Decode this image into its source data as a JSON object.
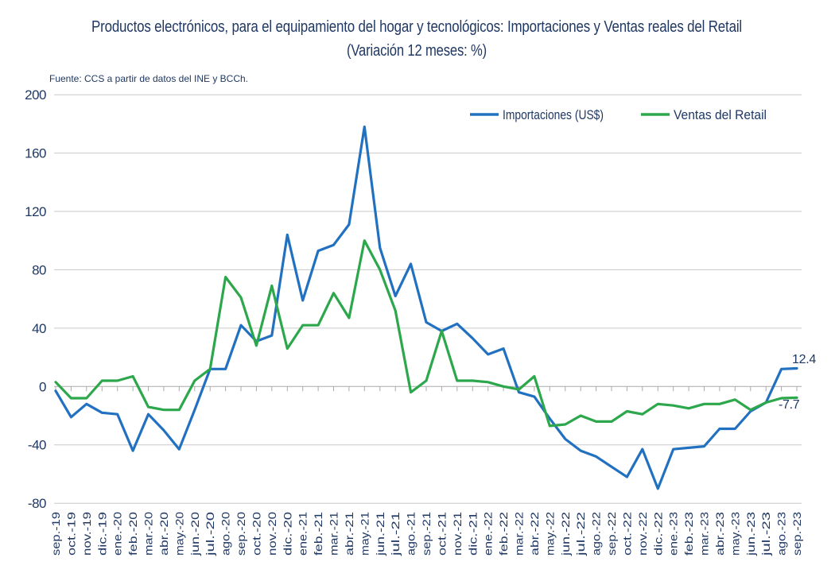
{
  "title": "Productos electrónicos, para el equipamiento del hogar y tecnológicos: Importaciones  y  Ventas reales del Retail",
  "subtitle": "(Variación 12 meses: %)",
  "source_note": "Fuente: CCS a partir de datos del INE y BCCh.",
  "colors": {
    "importaciones": "#2171C0",
    "ventas": "#2CA74B",
    "text_navy": "#1F3864",
    "gridline": "#C9C9C9",
    "axis_line": "#ABABAB"
  },
  "end_labels": {
    "importaciones": "12.4",
    "ventas": "-7.7"
  },
  "chart_data": {
    "type": "line",
    "title": "Productos electrónicos, para el equipamiento del hogar y tecnológicos: Importaciones y Ventas reales del Retail",
    "subtitle": "(Variación 12 meses: %)",
    "ylabel": "",
    "xlabel": "",
    "ylim": [
      -80,
      200
    ],
    "yticks": [
      200,
      160,
      120,
      80,
      40,
      0,
      -40,
      -80
    ],
    "grid": "horizontal",
    "legend_position": "top-right-inside",
    "categories": [
      "sep.-19",
      "oct.-19",
      "nov.-19",
      "dic.-19",
      "ene.-20",
      "feb.-20",
      "mar.-20",
      "abr.-20",
      "may.-20",
      "jun.-20",
      "jul.-20",
      "ago.-20",
      "sep.-20",
      "oct.-20",
      "nov.-20",
      "dic.-20",
      "ene.-21",
      "feb.-21",
      "mar.-21",
      "abr.-21",
      "may.-21",
      "jun.-21",
      "jul.-21",
      "ago.-21",
      "sep.-21",
      "oct.-21",
      "nov.-21",
      "dic.-21",
      "ene.-22",
      "feb.-22",
      "mar.-22",
      "abr.-22",
      "may.-22",
      "jun.-22",
      "jul.-22",
      "ago.-22",
      "sep.-22",
      "oct.-22",
      "nov.-22",
      "dic.-22",
      "ene.-23",
      "feb.-23",
      "mar.-23",
      "abr.-23",
      "may.-23",
      "jun.-23",
      "jul.-23",
      "ago.-23",
      "sep.-23"
    ],
    "series": [
      {
        "name": "Importaciones (US$)",
        "color": "#2171C0",
        "values": [
          -3,
          -21,
          -12,
          -18,
          -19,
          -44,
          -19,
          -30,
          -43,
          -16,
          12,
          12,
          42,
          31,
          35,
          104,
          59,
          93,
          97,
          111,
          178,
          95,
          62,
          84,
          44,
          38,
          43,
          33,
          22,
          26,
          -4,
          -7,
          -22,
          -36,
          -44,
          -48,
          -55,
          -62,
          -43,
          -70,
          -43,
          -42,
          -41,
          -29,
          -29,
          -17,
          -11,
          12,
          12.4
        ]
      },
      {
        "name": "Ventas del Retail",
        "color": "#2CA74B",
        "values": [
          3,
          -8,
          -8,
          4,
          4,
          7,
          -14,
          -16,
          -16,
          4,
          12,
          75,
          61,
          28,
          69,
          26,
          42,
          42,
          64,
          47,
          100,
          80,
          52,
          -4,
          4,
          38,
          4,
          4,
          3,
          0,
          -2,
          7,
          -27,
          -26,
          -20,
          -24,
          -24,
          -17,
          -19,
          -12,
          -13,
          -15,
          -12,
          -12,
          -9,
          -16,
          -11,
          -8,
          -7.7
        ]
      }
    ]
  }
}
